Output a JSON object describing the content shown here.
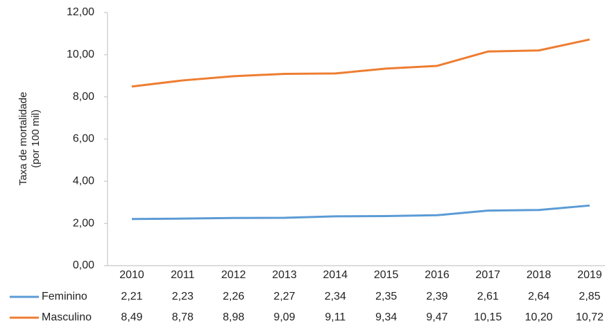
{
  "chart_data": {
    "type": "line",
    "ylabel": [
      "Taxa de mortalidade",
      "(por 100 mil)"
    ],
    "categories": [
      "2010",
      "2011",
      "2012",
      "2013",
      "2014",
      "2015",
      "2016",
      "2017",
      "2018",
      "2019"
    ],
    "series": [
      {
        "name": "Feminino",
        "color": "#5b9bd5",
        "values": [
          2.21,
          2.23,
          2.26,
          2.27,
          2.34,
          2.35,
          2.39,
          2.61,
          2.64,
          2.85
        ],
        "value_labels": [
          "2,21",
          "2,23",
          "2,26",
          "2,27",
          "2,34",
          "2,35",
          "2,39",
          "2,61",
          "2,64",
          "2,85"
        ]
      },
      {
        "name": "Masculino",
        "color": "#ed7d31",
        "values": [
          8.49,
          8.78,
          8.98,
          9.09,
          9.11,
          9.34,
          9.47,
          10.15,
          10.2,
          10.72
        ],
        "value_labels": [
          "8,49",
          "8,78",
          "8,98",
          "9,09",
          "9,11",
          "9,34",
          "9,47",
          "10,15",
          "10,20",
          "10,72"
        ]
      }
    ],
    "ylim": [
      0,
      12
    ],
    "yticks": [
      {
        "value": 0,
        "label": "0,00"
      },
      {
        "value": 2,
        "label": "2,00"
      },
      {
        "value": 4,
        "label": "4,00"
      },
      {
        "value": 6,
        "label": "6,00"
      },
      {
        "value": 8,
        "label": "8,00"
      },
      {
        "value": 10,
        "label": "10,00"
      },
      {
        "value": 12,
        "label": "12,00"
      }
    ],
    "grid": false
  }
}
